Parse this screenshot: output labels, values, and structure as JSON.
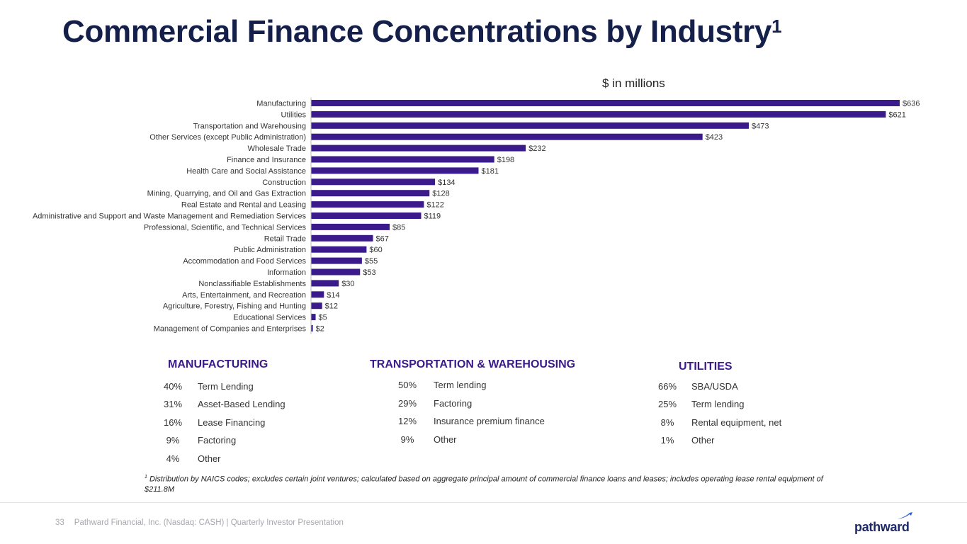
{
  "title": "Commercial Finance Concentrations by Industry",
  "title_superscript": "1",
  "units_label": "$ in millions",
  "chart_data": {
    "type": "bar",
    "orientation": "horizontal",
    "title": "Commercial Finance Concentrations by Industry",
    "unit": "$ in millions",
    "xlim": [
      0,
      636
    ],
    "color": "#3b1a8c",
    "categories": [
      "Manufacturing",
      "Utilities",
      "Transportation and Warehousing",
      "Other Services (except Public Administration)",
      "Wholesale Trade",
      "Finance and Insurance",
      "Health Care and Social Assistance",
      "Construction",
      "Mining, Quarrying, and Oil and Gas Extraction",
      "Real Estate and Rental and Leasing",
      "Administrative and Support and Waste Management and Remediation Services",
      "Professional, Scientific, and Technical Services",
      "Retail Trade",
      "Public Administration",
      "Accommodation and Food Services",
      "Information",
      "Nonclassifiable Establishments",
      "Arts, Entertainment, and Recreation",
      "Agriculture, Forestry, Fishing and Hunting",
      "Educational Services",
      "Management of Companies and Enterprises"
    ],
    "values": [
      636,
      621,
      473,
      423,
      232,
      198,
      181,
      134,
      128,
      122,
      119,
      85,
      67,
      60,
      55,
      53,
      30,
      14,
      12,
      5,
      2
    ],
    "value_labels": [
      "$636",
      "$621",
      "$473",
      "$423",
      "$232",
      "$198",
      "$181",
      "$134",
      "$128",
      "$122",
      "$119",
      "$85",
      "$67",
      "$60",
      "$55",
      "$53",
      "$30",
      "$14",
      "$12",
      "$5",
      "$2"
    ]
  },
  "sections": {
    "manufacturing": {
      "title": "MANUFACTURING",
      "rows": [
        {
          "pct": "40%",
          "label": "Term Lending"
        },
        {
          "pct": "31%",
          "label": "Asset-Based Lending"
        },
        {
          "pct": "16%",
          "label": "Lease Financing"
        },
        {
          "pct": "9%",
          "label": "Factoring"
        },
        {
          "pct": "4%",
          "label": "Other"
        }
      ]
    },
    "transportation": {
      "title": "TRANSPORTATION & WAREHOUSING",
      "rows": [
        {
          "pct": "50%",
          "label": "Term lending"
        },
        {
          "pct": "29%",
          "label": "Factoring"
        },
        {
          "pct": "12%",
          "label": "Insurance premium finance"
        },
        {
          "pct": "9%",
          "label": "Other"
        }
      ]
    },
    "utilities": {
      "title": "UTILITIES",
      "rows": [
        {
          "pct": "66%",
          "label": "SBA/USDA"
        },
        {
          "pct": "25%",
          "label": "Term lending"
        },
        {
          "pct": "8%",
          "label": "Rental equipment, net"
        },
        {
          "pct": "1%",
          "label": "Other"
        }
      ]
    }
  },
  "footnote": {
    "marker": "1",
    "text": "Distribution by NAICS codes; excludes certain joint ventures; calculated based on aggregate principal amount of commercial finance loans and leases; includes operating lease rental equipment of $211.8M"
  },
  "footer": {
    "page_number": "33",
    "text": "Pathward Financial, Inc. (Nasdaq: CASH) | Quarterly Investor Presentation",
    "logo_text": "pathward"
  }
}
